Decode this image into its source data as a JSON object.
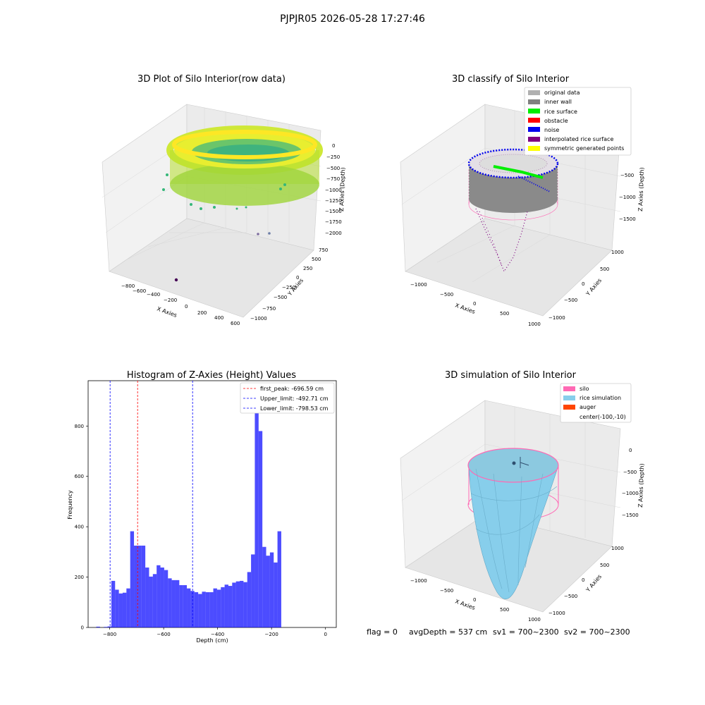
{
  "figure": {
    "suptitle": "PJPJR05 2026-05-28 17:27:46",
    "footer": {
      "flag": "flag = 0",
      "avg_depth": "avgDepth = 537 cm",
      "sv1": "sv1 = 700~2300",
      "sv2": "sv2 = 700~2300"
    }
  },
  "panels": {
    "raw": {
      "title": "3D Plot of Silo Interior(row data)",
      "xlabel": "X Axies",
      "ylabel": "Y Axies",
      "zlabel": "Z Axies (Depth)",
      "x_ticks": [
        "−800",
        "−600",
        "−400",
        "−200",
        "0",
        "200",
        "400",
        "600"
      ],
      "y_ticks": [
        "750",
        "500",
        "250",
        "0",
        "−250",
        "−500",
        "−750",
        "−1000"
      ],
      "z_ticks": [
        "0",
        "−250",
        "−500",
        "−750",
        "−1000",
        "−1250",
        "−1500",
        "−1750",
        "−2000"
      ]
    },
    "classify": {
      "title": "3D classify of Silo Interior",
      "xlabel": "X Axies",
      "ylabel": "Y Axies",
      "zlabel": "Z Axies (Depth)",
      "x_ticks": [
        "−1000",
        "−500",
        "0",
        "500",
        "1000"
      ],
      "y_ticks": [
        "1000",
        "500",
        "0",
        "−500",
        "−1000"
      ],
      "z_ticks": [
        "−500",
        "−1000",
        "−1500"
      ],
      "legend": [
        {
          "label": "original data",
          "color": "#b0b0b0"
        },
        {
          "label": "inner wall",
          "color": "#808080"
        },
        {
          "label": "rice surface",
          "color": "#00ee00"
        },
        {
          "label": "obstacle",
          "color": "#ff0000"
        },
        {
          "label": "noise",
          "color": "#0000ee"
        },
        {
          "label": "interpolated rice surface",
          "color": "#800080"
        },
        {
          "label": "symmetric generated points",
          "color": "#ffff00"
        }
      ]
    },
    "simulation": {
      "title": "3D simulation of Silo Interior",
      "xlabel": "X Axies",
      "ylabel": "Y Axies",
      "zlabel": "Z Axies (Depth)",
      "x_ticks": [
        "−1000",
        "−500",
        "0",
        "500",
        "1000"
      ],
      "y_ticks": [
        "1000",
        "500",
        "0",
        "−500",
        "−1000"
      ],
      "z_ticks": [
        "0",
        "−500",
        "−1000",
        "−1500"
      ],
      "legend": [
        {
          "label": "silo",
          "color": "#ff69b4"
        },
        {
          "label": "rice simulation",
          "color": "#87ceeb"
        },
        {
          "label": "auger",
          "color": "#ff4500"
        },
        {
          "label": "center(-100,-10)",
          "color": ""
        }
      ]
    }
  },
  "chart_data": {
    "type": "bar",
    "title": "Histogram of Z-Axies (Height) Values",
    "xlabel": "Depth (cm)",
    "ylabel": "Frequency",
    "xlim": [
      -880,
      40
    ],
    "ylim": [
      0,
      980
    ],
    "x_ticks": [
      -800,
      -600,
      -400,
      -200,
      0
    ],
    "y_ticks": [
      0,
      200,
      400,
      600,
      800
    ],
    "bar_color": "#0000ff",
    "bins": {
      "start": -850,
      "width": 14,
      "values": [
        3,
        0,
        2,
        4,
        185,
        150,
        135,
        138,
        155,
        382,
        325,
        325,
        325,
        238,
        202,
        212,
        247,
        238,
        228,
        195,
        188,
        188,
        168,
        168,
        155,
        145,
        140,
        133,
        142,
        140,
        140,
        155,
        150,
        160,
        170,
        165,
        178,
        183,
        185,
        180,
        220,
        290,
        945,
        780,
        320,
        285,
        298,
        258,
        382
      ]
    },
    "lines": [
      {
        "label": "first_peak: -696.59 cm",
        "x": -696.59,
        "color": "#ff0000"
      },
      {
        "label": "Upper_limit: -492.71 cm",
        "x": -492.71,
        "color": "#0000ff"
      },
      {
        "label": "Lower_limit: -798.53 cm",
        "x": -798.53,
        "color": "#0000ff"
      }
    ]
  }
}
